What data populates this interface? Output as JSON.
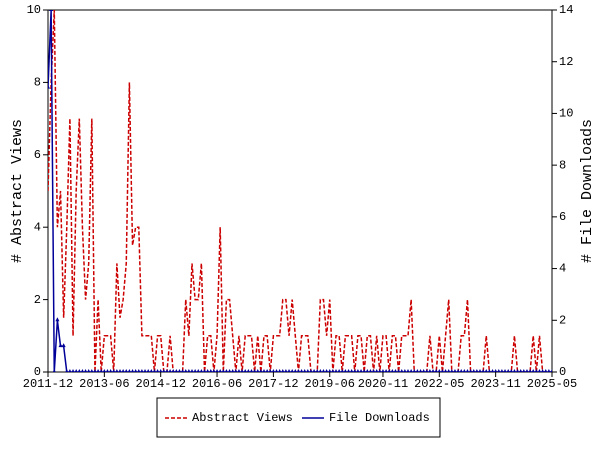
{
  "chart_data": {
    "type": "line",
    "y_label": "# Abstract Views",
    "y2_label": "# File Downloads",
    "categories": [
      "2011-12",
      null,
      null,
      null,
      null,
      null,
      null,
      null,
      null,
      null,
      null,
      null,
      null,
      null,
      null,
      null,
      null,
      null,
      "2013-06",
      null,
      null,
      null,
      null,
      null,
      null,
      null,
      null,
      null,
      null,
      null,
      null,
      null,
      null,
      null,
      null,
      null,
      "2014-12",
      null,
      null,
      null,
      null,
      null,
      null,
      null,
      null,
      null,
      null,
      null,
      null,
      null,
      null,
      null,
      null,
      null,
      "2016-06",
      null,
      null,
      null,
      null,
      null,
      null,
      null,
      null,
      null,
      null,
      null,
      null,
      null,
      null,
      null,
      null,
      null,
      "2017-12",
      null,
      null,
      null,
      null,
      null,
      null,
      null,
      null,
      null,
      null,
      null,
      null,
      null,
      null,
      null,
      null,
      null,
      "2019-06",
      null,
      null,
      null,
      null,
      null,
      null,
      null,
      null,
      null,
      null,
      null,
      null,
      null,
      null,
      null,
      null,
      "2020-11",
      null,
      null,
      null,
      null,
      null,
      null,
      null,
      null,
      null,
      null,
      null,
      null,
      null,
      null,
      null,
      null,
      null,
      "2022-05",
      null,
      null,
      null,
      null,
      null,
      null,
      null,
      null,
      null,
      null,
      null,
      null,
      null,
      null,
      null,
      null,
      null,
      "2023-11",
      null,
      null,
      null,
      null,
      null,
      null,
      null,
      null,
      null,
      null,
      null,
      null,
      null,
      null,
      null,
      null,
      null,
      "2025-05"
    ],
    "series": [
      {
        "name": "Abstract Views",
        "color": "#cc0000",
        "dash": true,
        "values": [
          5,
          8,
          10,
          4,
          5,
          1.5,
          4,
          7,
          1,
          5,
          7,
          4,
          2,
          3,
          7,
          0,
          2,
          0,
          1,
          1,
          1,
          0,
          3,
          1.5,
          2,
          3,
          8,
          3.5,
          4,
          4,
          1,
          1,
          1,
          1,
          0,
          1,
          1,
          0,
          0,
          1,
          0,
          0,
          0,
          0,
          2,
          1,
          3,
          2,
          2,
          3,
          0,
          1,
          1,
          0,
          1,
          4,
          0,
          2,
          2,
          1,
          0,
          1,
          0,
          1,
          1,
          1,
          0,
          1,
          0,
          1,
          1,
          0,
          1,
          1,
          1,
          2,
          2,
          1,
          2,
          1,
          0,
          1,
          1,
          1,
          0,
          0,
          0,
          2,
          2,
          1,
          2,
          0,
          1,
          1,
          0,
          1,
          1,
          1,
          0,
          1,
          1,
          0,
          1,
          1,
          0,
          1,
          0,
          1,
          1,
          0,
          1,
          1,
          0,
          1,
          1,
          1,
          2,
          0,
          0,
          0,
          0,
          0,
          1,
          0,
          0,
          1,
          0,
          1,
          2,
          0,
          0,
          0,
          1,
          1,
          2,
          0,
          0,
          0,
          0,
          0,
          1,
          0,
          0,
          0,
          0,
          0,
          0,
          0,
          0,
          1,
          0,
          0,
          0,
          0,
          0,
          1,
          0,
          1,
          0,
          0,
          0,
          0
        ]
      },
      {
        "name": "File Downloads",
        "color": "#000099",
        "axis": "y2",
        "markers": true,
        "values": [
          11,
          14,
          0,
          2,
          1,
          1,
          0,
          0,
          0,
          0,
          0,
          0,
          0,
          0,
          0,
          0,
          0,
          0,
          0,
          0,
          0,
          0,
          0,
          0,
          0,
          0,
          0,
          0,
          0,
          0,
          0,
          0,
          0,
          0,
          0,
          0,
          0,
          0,
          0,
          0,
          0,
          0,
          0,
          0,
          0,
          0,
          0,
          0,
          0,
          0,
          0,
          0,
          0,
          0,
          0,
          0,
          0,
          0,
          0,
          0,
          0,
          0,
          0,
          0,
          0,
          0,
          0,
          0,
          0,
          0,
          0,
          0,
          0,
          0,
          0,
          0,
          0,
          0,
          0,
          0,
          0,
          0,
          0,
          0,
          0,
          0,
          0,
          0,
          0,
          0,
          0,
          0,
          0,
          0,
          0,
          0,
          0,
          0,
          0,
          0,
          0,
          0,
          0,
          0,
          0,
          0,
          0,
          0,
          0,
          0,
          0,
          0,
          0,
          0,
          0,
          0,
          0,
          0,
          0,
          0,
          0,
          0,
          0,
          0,
          0,
          0,
          0,
          0,
          0,
          0,
          0,
          0,
          0,
          0,
          0,
          0,
          0,
          0,
          0,
          0,
          0,
          0,
          0,
          0,
          0,
          0,
          0,
          0,
          0,
          0,
          0,
          0,
          0,
          0,
          0,
          0,
          0,
          0,
          0,
          0,
          0,
          0
        ]
      }
    ],
    "ylim": [
      0,
      10
    ],
    "yticks": [
      0,
      2,
      4,
      6,
      8,
      10
    ],
    "y2lim": [
      0,
      14
    ],
    "y2ticks": [
      0,
      2,
      4,
      6,
      8,
      10,
      12,
      14
    ],
    "legend": "bottom"
  }
}
